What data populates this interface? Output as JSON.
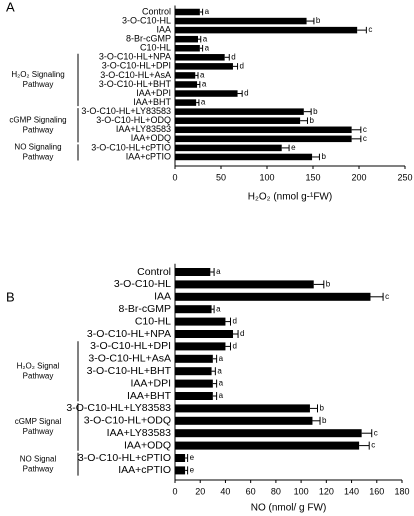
{
  "chart_data": [
    {
      "type": "bar",
      "panel_label": "A",
      "categories": [
        "Control",
        "3-O-C10-HL",
        "IAA",
        "8-Br-cGMP",
        "C10-HL",
        "3-O-C10-HL+NPA",
        "3-O-C10-HL+DPI",
        "3-O-C10-HL+AsA",
        "3-O-C10-HL+BHT",
        "IAA+DPI",
        "IAA+BHT",
        "3-O-C10-HL+LY83583",
        "3-O-C10-HL+ODQ",
        "IAA+LY83583",
        "IAA+ODQ",
        "3-O-C10-HL+cPTIO",
        "IAA+cPTIO"
      ],
      "values": [
        27,
        143,
        198,
        25,
        27,
        54,
        63,
        22,
        24,
        68,
        23,
        140,
        136,
        192,
        192,
        116,
        149
      ],
      "errors": [
        3,
        8,
        10,
        3,
        3,
        5,
        5,
        3,
        3,
        5,
        3,
        8,
        8,
        10,
        10,
        8,
        8
      ],
      "letters": [
        "a",
        "b",
        "c",
        "a",
        "a",
        "d",
        "d",
        "a",
        "a",
        "d",
        "a",
        "b",
        "b",
        "c",
        "c",
        "e",
        "b"
      ],
      "color": "#000000",
      "xlim": [
        0,
        250
      ],
      "xticks": [
        0,
        50,
        100,
        150,
        200,
        250
      ],
      "xlabel": "H₂O₂ (nmol g-¹FW)",
      "annotations": [
        [
          "H₂O₂ Signaling",
          "Pathway"
        ],
        [
          "cGMP Signaling",
          "Pathway"
        ],
        [
          "NO Signaling",
          "Pathway"
        ]
      ]
    },
    {
      "type": "bar",
      "panel_label": "B",
      "categories": [
        "Control",
        "3-O-C10-HL",
        "IAA",
        "8-Br-cGMP",
        "C10-HL",
        "3-O-C10-HL+NPA",
        "3-O-C10-HL+DPI",
        "3-O-C10-HL+AsA",
        "3-O-C10-HL+BHT",
        "IAA+DPI",
        "IAA+BHT",
        "3-O-C10-HL+LY83583",
        "3-O-C10-HL+ODQ",
        "IAA+LY83583",
        "IAA+ODQ",
        "3-O-C10-HL+cPTIO",
        "IAA+cPTIO"
      ],
      "values": [
        28,
        110,
        155,
        29,
        40,
        46,
        40,
        30,
        29,
        30,
        30,
        107,
        109,
        148,
        146,
        8,
        8
      ],
      "errors": [
        3,
        8,
        10,
        2,
        4,
        4,
        4,
        3,
        3,
        3,
        3,
        6,
        6,
        8,
        8,
        2,
        2
      ],
      "letters": [
        "a",
        "b",
        "c",
        "a",
        "d",
        "d",
        "d",
        "a",
        "a",
        "a",
        "a",
        "b",
        "b",
        "c",
        "c",
        "e",
        "e"
      ],
      "color": "#000000",
      "xlim": [
        0,
        180
      ],
      "xticks": [
        0,
        20,
        40,
        60,
        80,
        100,
        120,
        140,
        160,
        180
      ],
      "xlabel": "NO (nmol/ g FW)",
      "annotations": [
        [
          "H₂O₂ Signal",
          "Pathway"
        ],
        [
          "cGMP Signal",
          "Pathway"
        ],
        [
          "NO Signal",
          "Pathway"
        ]
      ]
    }
  ]
}
